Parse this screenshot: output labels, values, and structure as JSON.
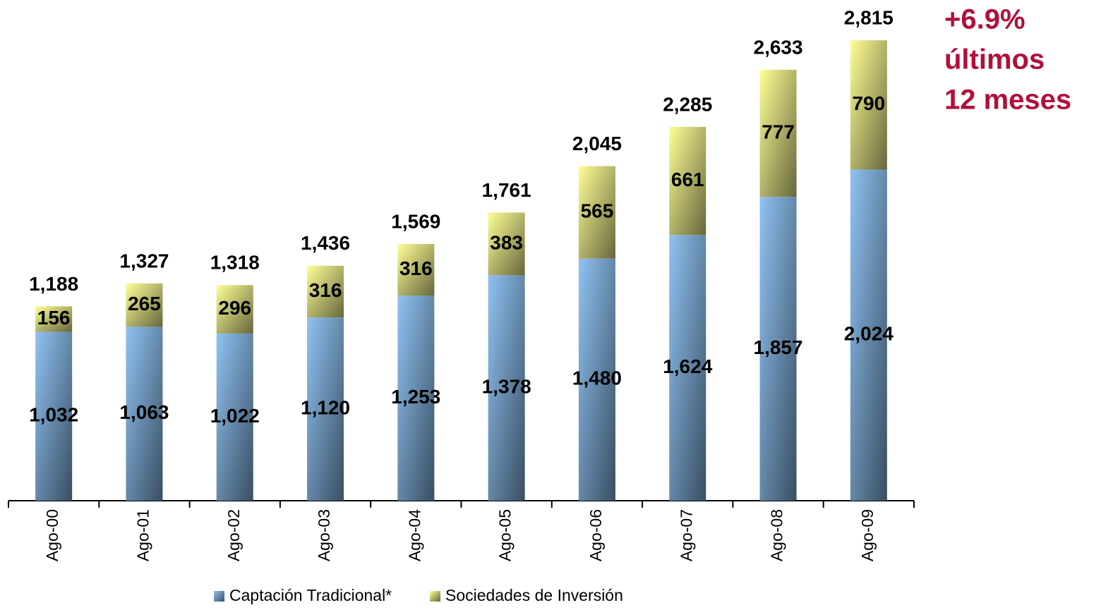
{
  "chart_data": {
    "type": "stacked_bar",
    "categories": [
      "Ago-00",
      "Ago-01",
      "Ago-02",
      "Ago-03",
      "Ago-04",
      "Ago-05",
      "Ago-06",
      "Ago-07",
      "Ago-08",
      "Ago-09"
    ],
    "series": [
      {
        "name": "Captación Tradicional*",
        "color": "#8fc2f2",
        "values": [
          1032,
          1063,
          1022,
          1120,
          1253,
          1378,
          1480,
          1624,
          1857,
          2024
        ],
        "value_labels": [
          "1,032",
          "1,063",
          "1,022",
          "1,120",
          "1,253",
          "1,378",
          "1,480",
          "1,624",
          "1,857",
          "2,024"
        ]
      },
      {
        "name": "Sociedades de Inversión",
        "color": "#ffff96",
        "values": [
          156,
          265,
          296,
          316,
          316,
          383,
          565,
          661,
          777,
          790
        ]
      }
    ],
    "totals": [
      1188,
      1327,
      1318,
      1436,
      1569,
      1761,
      2045,
      2285,
      2633,
      2815
    ],
    "total_labels": [
      "1,188",
      "1,327",
      "1,318",
      "1,436",
      "1,569",
      "1,761",
      "2,045",
      "2,285",
      "2,633",
      "2,815"
    ],
    "annotation": [
      "+6.9%",
      "últimos",
      "12 meses"
    ],
    "annotation_color": "#b0103a",
    "ylim": [
      0,
      3000
    ]
  }
}
